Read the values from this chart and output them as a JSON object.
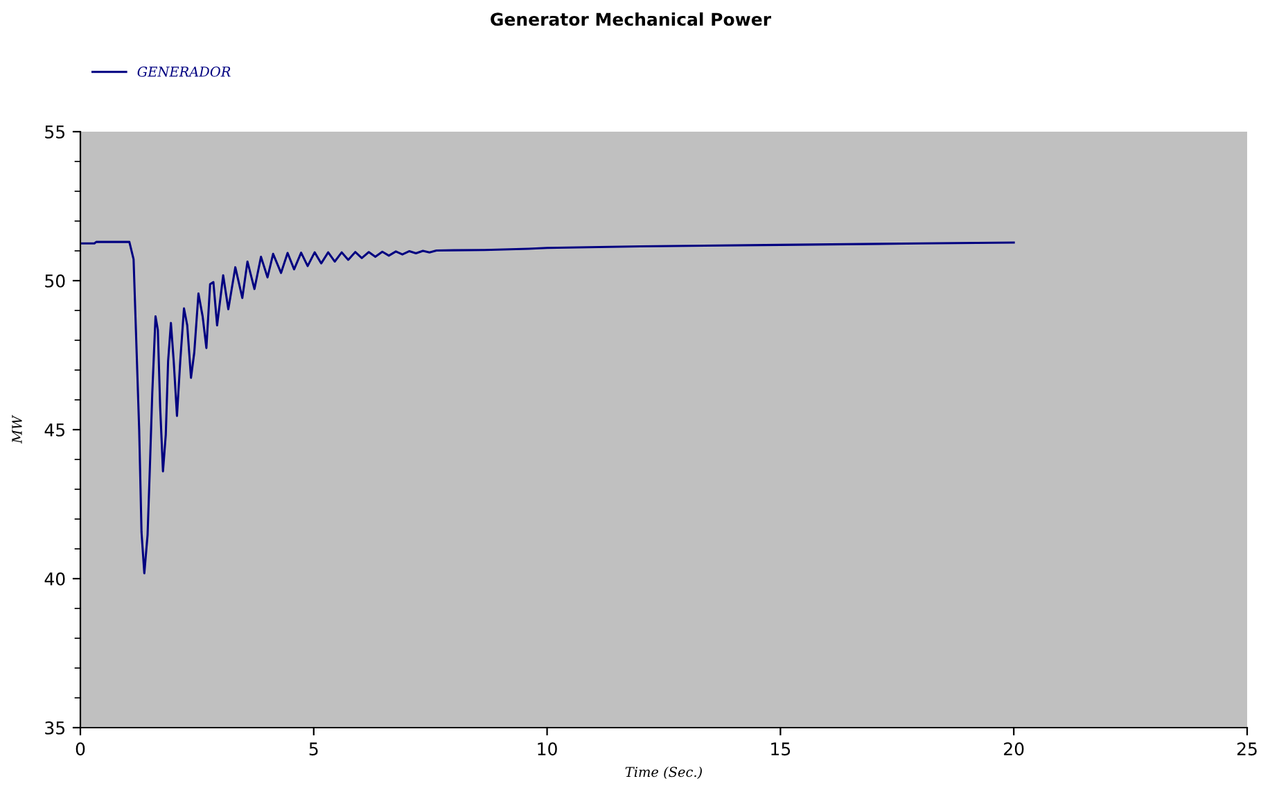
{
  "chart_data": {
    "type": "line",
    "title": "Generator Mechanical Power",
    "xlabel": "Time (Sec.)",
    "ylabel": "MW",
    "xlim": [
      0,
      25
    ],
    "xticks": [
      0,
      5,
      10,
      15,
      20,
      25
    ],
    "ylim": [
      35,
      55
    ],
    "yticks": [
      35,
      40,
      45,
      50,
      55
    ],
    "grid": false,
    "legend": "top left",
    "marker": "none",
    "line_style": "solid",
    "series": [
      {
        "name": "GENERADOR",
        "color": "#000080",
        "x": [
          0,
          0.3,
          0.34,
          1.05,
          1.14,
          1.19,
          1.26,
          1.31,
          1.37,
          1.44,
          1.49,
          1.54,
          1.61,
          1.66,
          1.71,
          1.77,
          1.83,
          1.88,
          1.94,
          2.0,
          2.07,
          2.14,
          2.22,
          2.29,
          2.37,
          2.44,
          2.53,
          2.62,
          2.7,
          2.78,
          2.85,
          2.93,
          3.06,
          3.17,
          3.32,
          3.47,
          3.58,
          3.73,
          3.87,
          4.01,
          4.13,
          4.3,
          4.44,
          4.58,
          4.73,
          4.87,
          5.02,
          5.16,
          5.31,
          5.45,
          5.6,
          5.74,
          5.89,
          6.03,
          6.18,
          6.32,
          6.47,
          6.61,
          6.76,
          6.9,
          7.05,
          7.19,
          7.34,
          7.48,
          7.63,
          8.0,
          8.66,
          9.6,
          10.0,
          12.0,
          15.0,
          18.0,
          20.0
        ],
        "values": [
          51.25,
          51.25,
          51.3,
          51.3,
          50.72,
          48.35,
          45.0,
          41.56,
          40.18,
          41.47,
          43.76,
          46.2,
          48.8,
          48.35,
          45.75,
          43.6,
          44.83,
          47.3,
          48.58,
          47.3,
          45.46,
          47.3,
          49.07,
          48.5,
          46.74,
          47.58,
          49.57,
          48.8,
          47.74,
          49.88,
          49.95,
          48.5,
          50.18,
          49.04,
          50.45,
          49.42,
          50.64,
          49.72,
          50.8,
          50.11,
          50.9,
          50.26,
          50.93,
          50.38,
          50.94,
          50.49,
          50.95,
          50.58,
          50.95,
          50.64,
          50.95,
          50.7,
          50.96,
          50.76,
          50.96,
          50.8,
          50.97,
          50.84,
          50.98,
          50.88,
          50.99,
          50.92,
          51.0,
          50.95,
          51.01,
          51.02,
          51.03,
          51.07,
          51.1,
          51.15,
          51.2,
          51.25,
          51.28
        ]
      }
    ]
  }
}
